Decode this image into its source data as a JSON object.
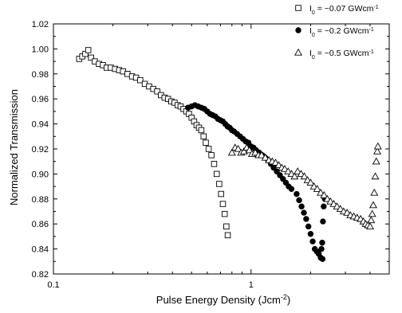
{
  "chart_data": {
    "type": "scatter",
    "xscale": "log",
    "xlim": [
      0.1,
      5
    ],
    "ylim": [
      0.82,
      1.02
    ],
    "xticks": [
      0.1,
      1
    ],
    "xtick_labels": [
      "0.1",
      "1"
    ],
    "yticks": [
      0.82,
      0.84,
      0.86,
      0.88,
      0.9,
      0.92,
      0.94,
      0.96,
      0.98,
      1.0,
      1.02
    ],
    "ytick_labels": [
      "0.82",
      "0.84",
      "0.86",
      "0.88",
      "0.90",
      "0.92",
      "0.94",
      "0.96",
      "0.98",
      "1.00",
      "1.02"
    ],
    "xlabel": "Pulse Energy Density (Jcm",
    "xlabel_sup": "-2",
    "xlabel_end": ")",
    "ylabel": "Normalized Transmission",
    "grid": false,
    "legend_position": "top-right",
    "series": [
      {
        "name": "I",
        "name_sub": "0",
        "name_rest": " = ~0.07 GWcm",
        "name_sup": "-1",
        "marker": "open-square",
        "color": "#000000",
        "points": [
          [
            0.135,
            0.992
          ],
          [
            0.14,
            0.994
          ],
          [
            0.145,
            0.996
          ],
          [
            0.15,
            0.999
          ],
          [
            0.155,
            0.993
          ],
          [
            0.162,
            0.99
          ],
          [
            0.17,
            0.988
          ],
          [
            0.178,
            0.987
          ],
          [
            0.186,
            0.985
          ],
          [
            0.195,
            0.985
          ],
          [
            0.205,
            0.984
          ],
          [
            0.215,
            0.983
          ],
          [
            0.225,
            0.982
          ],
          [
            0.237,
            0.98
          ],
          [
            0.25,
            0.978
          ],
          [
            0.262,
            0.977
          ],
          [
            0.275,
            0.975
          ],
          [
            0.29,
            0.972
          ],
          [
            0.305,
            0.97
          ],
          [
            0.32,
            0.968
          ],
          [
            0.335,
            0.966
          ],
          [
            0.35,
            0.963
          ],
          [
            0.365,
            0.961
          ],
          [
            0.38,
            0.96
          ],
          [
            0.395,
            0.958
          ],
          [
            0.41,
            0.957
          ],
          [
            0.425,
            0.955
          ],
          [
            0.44,
            0.954
          ],
          [
            0.455,
            0.952
          ],
          [
            0.47,
            0.95
          ],
          [
            0.485,
            0.948
          ],
          [
            0.5,
            0.945
          ],
          [
            0.515,
            0.942
          ],
          [
            0.53,
            0.939
          ],
          [
            0.545,
            0.937
          ],
          [
            0.56,
            0.935
          ],
          [
            0.575,
            0.93
          ],
          [
            0.59,
            0.925
          ],
          [
            0.61,
            0.92
          ],
          [
            0.63,
            0.915
          ],
          [
            0.65,
            0.908
          ],
          [
            0.67,
            0.9
          ],
          [
            0.69,
            0.892
          ],
          [
            0.705,
            0.884
          ],
          [
            0.72,
            0.876
          ],
          [
            0.735,
            0.868
          ],
          [
            0.75,
            0.858
          ],
          [
            0.762,
            0.851
          ]
        ]
      },
      {
        "name": "I",
        "name_sub": "0",
        "name_rest": " = ~0.2 GWcm",
        "name_sup": "-1",
        "marker": "filled-circle",
        "color": "#000000",
        "points": [
          [
            0.48,
            0.953
          ],
          [
            0.5,
            0.954
          ],
          [
            0.52,
            0.955
          ],
          [
            0.54,
            0.954
          ],
          [
            0.56,
            0.953
          ],
          [
            0.58,
            0.952
          ],
          [
            0.6,
            0.95
          ],
          [
            0.62,
            0.948
          ],
          [
            0.64,
            0.947
          ],
          [
            0.66,
            0.946
          ],
          [
            0.68,
            0.944
          ],
          [
            0.7,
            0.943
          ],
          [
            0.72,
            0.942
          ],
          [
            0.74,
            0.94
          ],
          [
            0.76,
            0.938
          ],
          [
            0.78,
            0.937
          ],
          [
            0.8,
            0.935
          ],
          [
            0.82,
            0.934
          ],
          [
            0.85,
            0.932
          ],
          [
            0.88,
            0.93
          ],
          [
            0.91,
            0.928
          ],
          [
            0.94,
            0.926
          ],
          [
            0.97,
            0.925
          ],
          [
            1.0,
            0.922
          ],
          [
            1.03,
            0.921
          ],
          [
            1.06,
            0.919
          ],
          [
            1.1,
            0.917
          ],
          [
            1.14,
            0.915
          ],
          [
            1.18,
            0.913
          ],
          [
            1.22,
            0.911
          ],
          [
            1.26,
            0.908
          ],
          [
            1.3,
            0.905
          ],
          [
            1.35,
            0.902
          ],
          [
            1.4,
            0.899
          ],
          [
            1.45,
            0.896
          ],
          [
            1.5,
            0.893
          ],
          [
            1.55,
            0.89
          ],
          [
            1.6,
            0.888
          ],
          [
            1.7,
            0.884
          ],
          [
            1.75,
            0.879
          ],
          [
            1.8,
            0.874
          ],
          [
            1.85,
            0.869
          ],
          [
            1.9,
            0.864
          ],
          [
            1.95,
            0.858
          ],
          [
            2.0,
            0.852
          ],
          [
            2.05,
            0.846
          ],
          [
            2.1,
            0.84
          ],
          [
            2.15,
            0.838
          ],
          [
            2.2,
            0.836
          ],
          [
            2.25,
            0.833
          ],
          [
            2.3,
            0.832
          ],
          [
            2.27,
            0.84
          ],
          [
            2.29,
            0.845
          ],
          [
            2.31,
            0.862
          ],
          [
            2.33,
            0.874
          ],
          [
            2.36,
            0.88
          ]
        ]
      },
      {
        "name": "I",
        "name_sub": "0",
        "name_rest": " = ~0.5 GWcm",
        "name_sup": "-1",
        "marker": "open-triangle",
        "color": "#000000",
        "points": [
          [
            0.8,
            0.917
          ],
          [
            0.83,
            0.921
          ],
          [
            0.86,
            0.92
          ],
          [
            0.89,
            0.917
          ],
          [
            0.92,
            0.918
          ],
          [
            0.95,
            0.921
          ],
          [
            0.98,
            0.919
          ],
          [
            1.01,
            0.916
          ],
          [
            1.05,
            0.917
          ],
          [
            1.09,
            0.915
          ],
          [
            1.13,
            0.915
          ],
          [
            1.18,
            0.913
          ],
          [
            1.23,
            0.911
          ],
          [
            1.28,
            0.91
          ],
          [
            1.33,
            0.909
          ],
          [
            1.38,
            0.907
          ],
          [
            1.43,
            0.905
          ],
          [
            1.48,
            0.904
          ],
          [
            1.54,
            0.902
          ],
          [
            1.6,
            0.9
          ],
          [
            1.66,
            0.898
          ],
          [
            1.72,
            0.902
          ],
          [
            1.79,
            0.9
          ],
          [
            1.86,
            0.898
          ],
          [
            1.93,
            0.895
          ],
          [
            2.0,
            0.893
          ],
          [
            2.08,
            0.89
          ],
          [
            2.16,
            0.888
          ],
          [
            2.25,
            0.885
          ],
          [
            2.34,
            0.883
          ],
          [
            2.43,
            0.88
          ],
          [
            2.52,
            0.878
          ],
          [
            2.62,
            0.876
          ],
          [
            2.72,
            0.874
          ],
          [
            2.83,
            0.872
          ],
          [
            2.94,
            0.87
          ],
          [
            3.06,
            0.869
          ],
          [
            3.18,
            0.867
          ],
          [
            3.31,
            0.866
          ],
          [
            3.44,
            0.865
          ],
          [
            3.58,
            0.864
          ],
          [
            3.7,
            0.862
          ],
          [
            3.8,
            0.86
          ],
          [
            3.9,
            0.859
          ],
          [
            4.0,
            0.858
          ],
          [
            4.05,
            0.863
          ],
          [
            4.1,
            0.868
          ],
          [
            4.15,
            0.875
          ],
          [
            4.2,
            0.885
          ],
          [
            4.25,
            0.898
          ],
          [
            4.3,
            0.91
          ],
          [
            4.35,
            0.918
          ],
          [
            4.38,
            0.922
          ]
        ]
      }
    ]
  }
}
